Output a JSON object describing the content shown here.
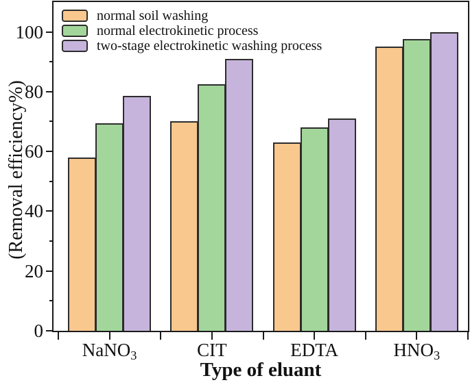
{
  "chart_data": {
    "type": "bar",
    "title": "",
    "xlabel": "Type of eluant",
    "ylabel": "(Removal efficiency%)",
    "ylim": [
      0,
      110
    ],
    "yticks_major": [
      0,
      20,
      40,
      60,
      80,
      100
    ],
    "yticks_minor": [
      10,
      30,
      50,
      70,
      90
    ],
    "grid": false,
    "legend_position": "top-left-inside",
    "frame": "full-box",
    "categories": [
      "NaNO3",
      "CIT",
      "EDTA",
      "HNO3"
    ],
    "categories_display": [
      {
        "base": "NaNO",
        "sub": "3"
      },
      {
        "base": "CIT",
        "sub": ""
      },
      {
        "base": "EDTA",
        "sub": ""
      },
      {
        "base": "HNO",
        "sub": "3"
      }
    ],
    "series": [
      {
        "name": "normal soil washing",
        "color": "#F9C88E",
        "values": [
          58,
          70,
          63,
          95
        ]
      },
      {
        "name": "normal electrokinetic process",
        "color": "#A3D69B",
        "values": [
          69.5,
          82.5,
          68,
          97.5
        ]
      },
      {
        "name": "two-stage electrokinetic washing process",
        "color": "#C6B4DC",
        "values": [
          78.5,
          91,
          71,
          100
        ]
      }
    ],
    "colors": {
      "bar_border": "#2d2d2d",
      "axis": "#1a1a1a",
      "background": "#ffffff"
    }
  }
}
